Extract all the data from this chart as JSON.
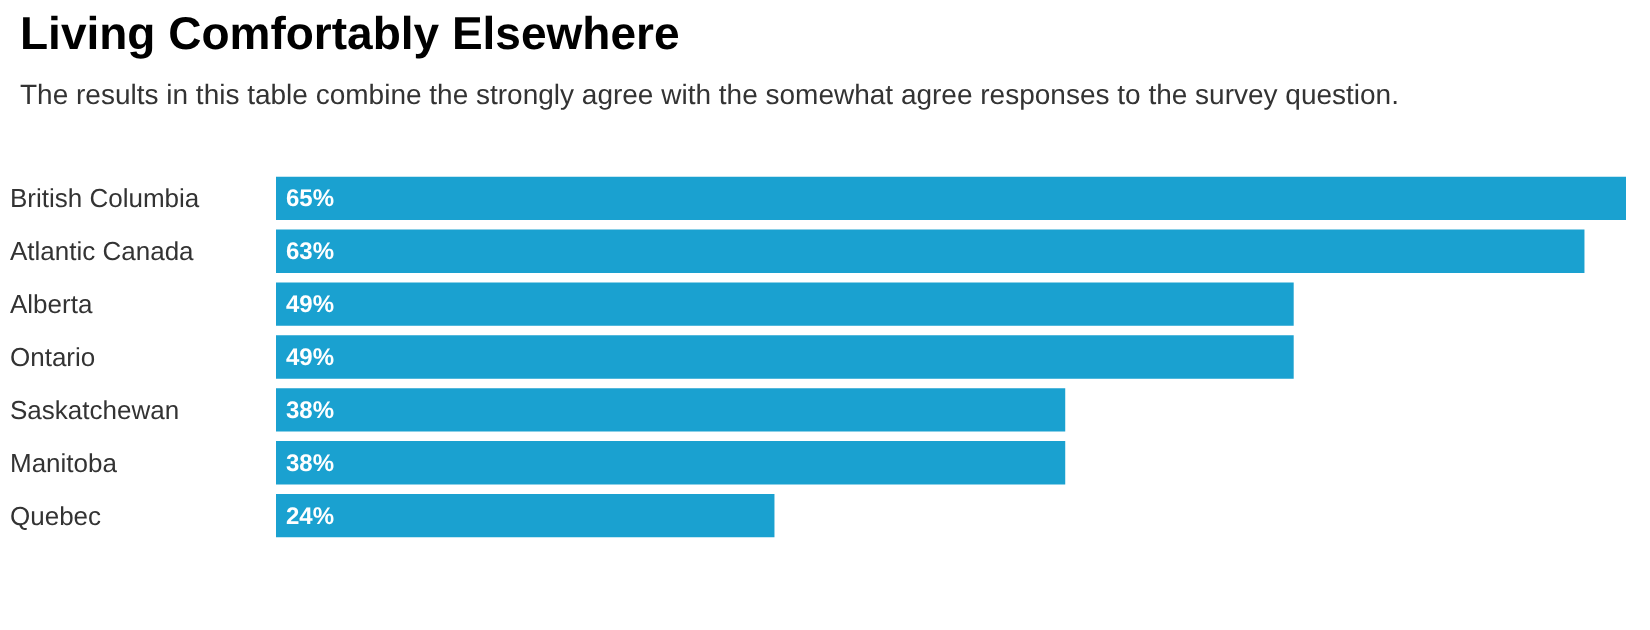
{
  "chart_data": {
    "type": "bar",
    "orientation": "horizontal",
    "title": "Living Comfortably Elsewhere",
    "subtitle": "The results in this table combine the strongly agree with the somewhat agree responses to the survey question.",
    "categories": [
      "British Columbia",
      "Atlantic Canada",
      "Alberta",
      "Ontario",
      "Saskatchewan",
      "Manitoba",
      "Quebec"
    ],
    "values": [
      65,
      63,
      49,
      49,
      38,
      38,
      24
    ],
    "value_labels": [
      "65%",
      "63%",
      "49%",
      "49%",
      "38%",
      "38%",
      "24%"
    ],
    "color": "#1aa1d0"
  }
}
